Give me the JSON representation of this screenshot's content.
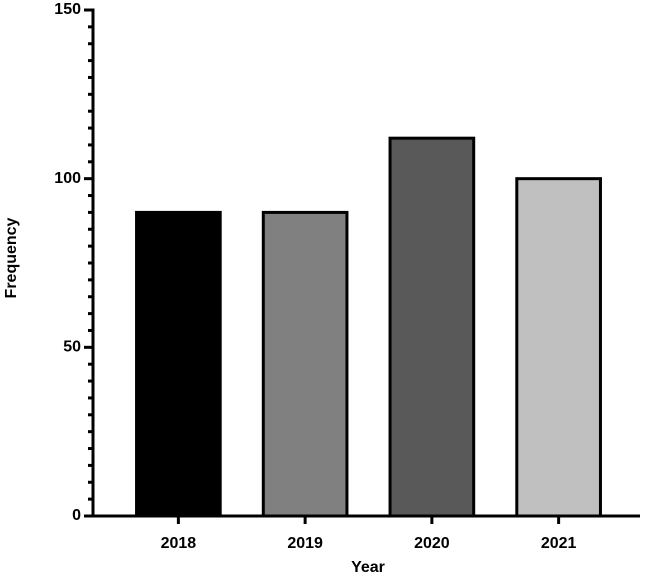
{
  "chart_data": {
    "type": "bar",
    "x_label": "Year",
    "y_label": "Frequency",
    "categories": [
      "2018",
      "2019",
      "2020",
      "2021"
    ],
    "values": [
      90,
      90,
      112,
      100
    ],
    "colors": [
      "#000000",
      "#808080",
      "#595959",
      "#c0c0c0"
    ],
    "ylim": [
      0,
      150
    ],
    "yticks": [
      0,
      50,
      100,
      150
    ],
    "minor_yticks": [
      5,
      10,
      15,
      20,
      25,
      30,
      35,
      40,
      45,
      55,
      60,
      65,
      70,
      75,
      80,
      85,
      90,
      95,
      105,
      110,
      115,
      120,
      125,
      130,
      135,
      140,
      145
    ],
    "grid": false
  }
}
